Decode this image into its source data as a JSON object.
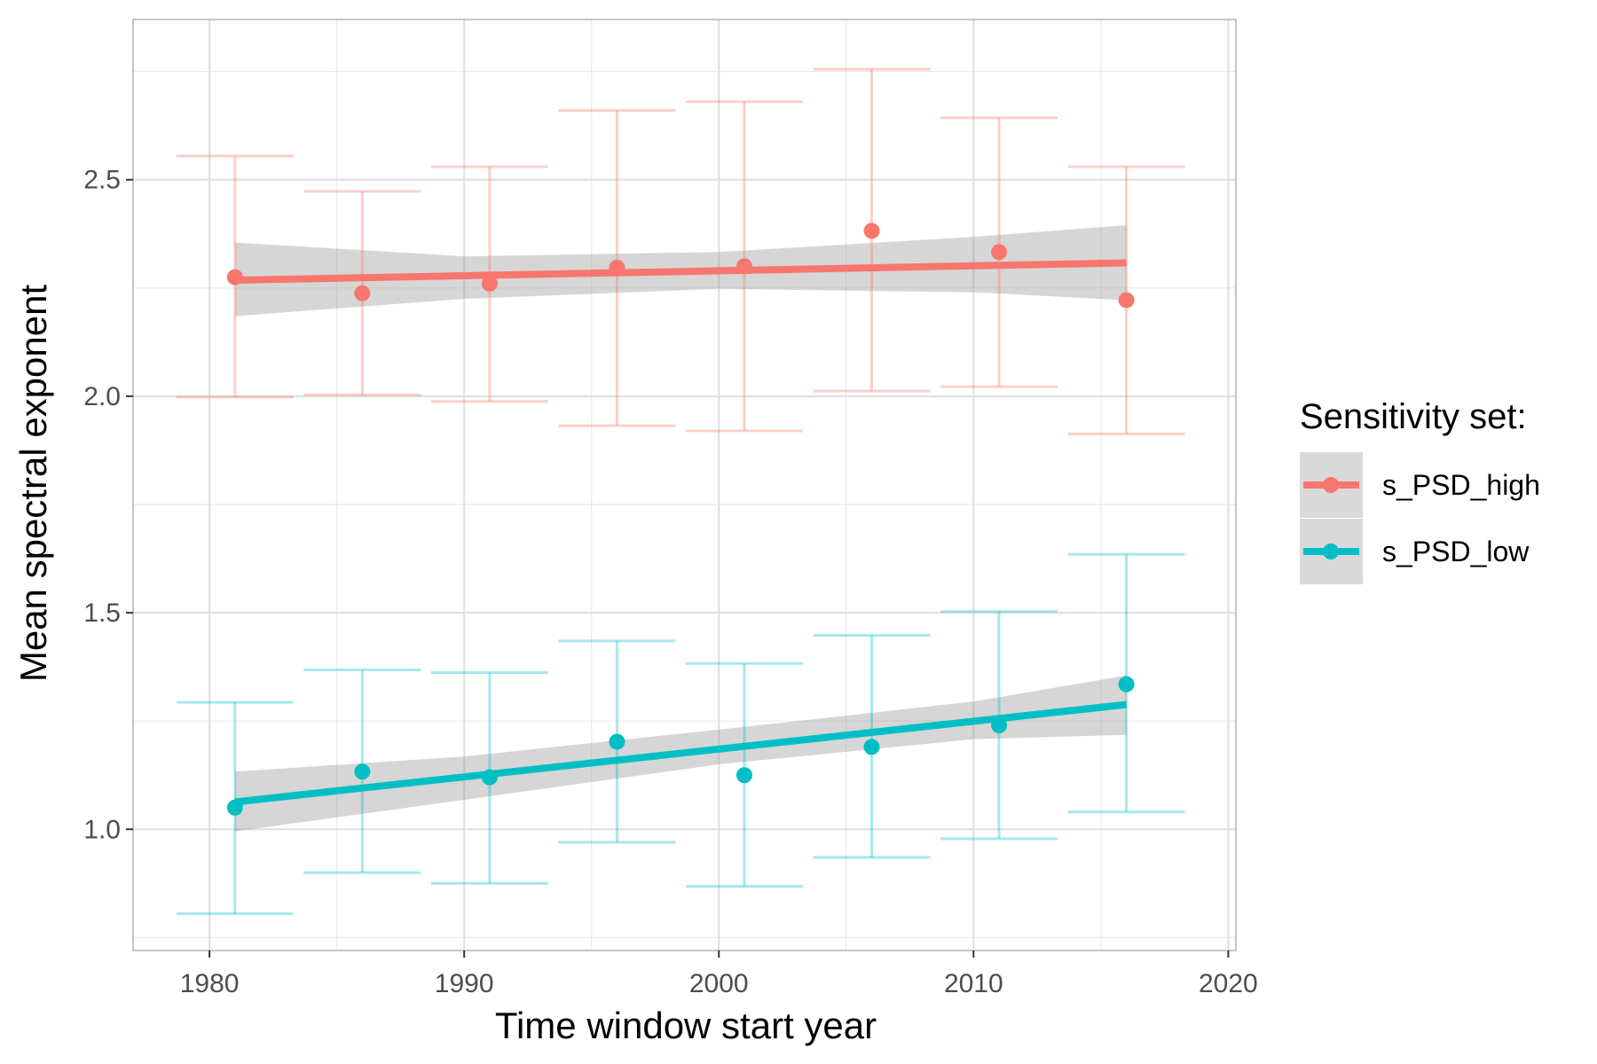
{
  "chart_data": {
    "type": "scatter",
    "xlabel": "Time window start year",
    "ylabel": "Mean spectral exponent",
    "xlim": [
      1977,
      2020.3
    ],
    "ylim": [
      0.72,
      2.87
    ],
    "x_ticks": [
      1980,
      1990,
      2000,
      2010,
      2020
    ],
    "x_tick_labels": [
      "1980",
      "1990",
      "2000",
      "2010",
      "2020"
    ],
    "y_ticks": [
      1.0,
      1.5,
      2.0,
      2.5
    ],
    "y_tick_labels": [
      "1.0",
      "1.5",
      "2.0",
      "2.5"
    ],
    "grid": true,
    "legend_position": "right",
    "legend_title": "Sensitivity set:",
    "series": [
      {
        "name": "s_PSD_high",
        "color": "#F8766D",
        "x": [
          1981,
          1986,
          1991,
          1996,
          2001,
          2006,
          2011,
          2016
        ],
        "y": [
          2.275,
          2.238,
          2.26,
          2.297,
          2.3,
          2.382,
          2.333,
          2.222
        ],
        "ymin": [
          1.998,
          2.003,
          1.988,
          1.932,
          1.92,
          2.012,
          2.022,
          1.913
        ],
        "ymax": [
          2.555,
          2.473,
          2.53,
          2.66,
          2.68,
          2.755,
          2.643,
          2.53
        ],
        "trend": {
          "x": [
            1981,
            2016
          ],
          "y": [
            2.268,
            2.308
          ]
        },
        "ci": {
          "x": [
            1981,
            1990,
            2000,
            2010,
            2016
          ],
          "lower": [
            2.185,
            2.225,
            2.248,
            2.24,
            2.222
          ],
          "upper": [
            2.355,
            2.323,
            2.333,
            2.368,
            2.395
          ]
        }
      },
      {
        "name": "s_PSD_low",
        "color": "#00BFC4",
        "x": [
          1981,
          1986,
          1991,
          1996,
          2001,
          2006,
          2011,
          2016
        ],
        "y": [
          1.05,
          1.133,
          1.12,
          1.202,
          1.125,
          1.19,
          1.24,
          1.335
        ],
        "ymin": [
          0.805,
          0.9,
          0.875,
          0.97,
          0.868,
          0.935,
          0.978,
          1.04
        ],
        "ymax": [
          1.293,
          1.368,
          1.362,
          1.435,
          1.383,
          1.448,
          1.503,
          1.635
        ],
        "trend": {
          "x": [
            1981,
            2016
          ],
          "y": [
            1.063,
            1.288
          ]
        },
        "ci": {
          "x": [
            1981,
            1990,
            2000,
            2010,
            2016
          ],
          "lower": [
            0.995,
            1.068,
            1.15,
            1.208,
            1.218
          ],
          "upper": [
            1.133,
            1.168,
            1.23,
            1.295,
            1.355
          ]
        }
      }
    ]
  }
}
